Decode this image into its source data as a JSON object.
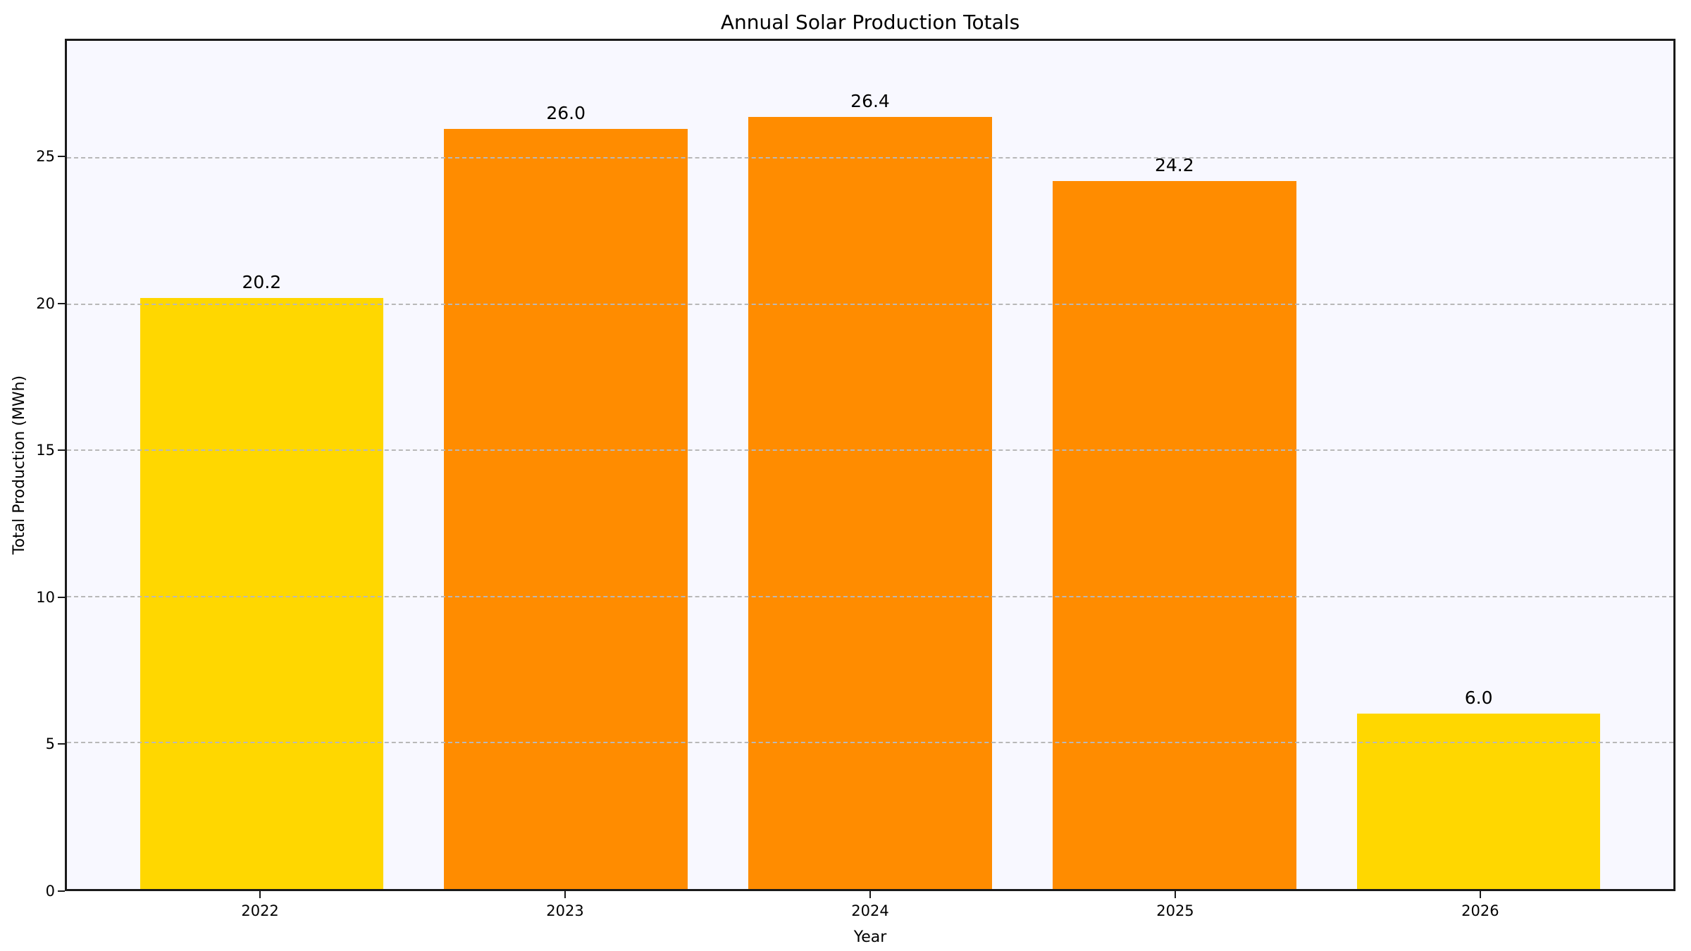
{
  "chart_data": {
    "type": "bar",
    "title": "Annual Solar Production Totals",
    "xlabel": "Year",
    "ylabel": "Total Production (MWh)",
    "categories": [
      "2022",
      "2023",
      "2024",
      "2025",
      "2026"
    ],
    "values": [
      20.2,
      26.0,
      26.4,
      24.2,
      6.0
    ],
    "bar_labels": [
      "20.2",
      "26.0",
      "26.4",
      "24.2",
      "6.0"
    ],
    "bar_colors": [
      "#FFD700",
      "#FF8C00",
      "#FF8C00",
      "#FF8C00",
      "#FFD700"
    ],
    "ylim": [
      0,
      29
    ],
    "yticks": [
      0,
      5,
      10,
      15,
      20,
      25
    ],
    "grid": {
      "axis": "y",
      "style": "dashed",
      "color": "#b8b8b8",
      "drawn_over_bars": true
    },
    "legend": "none",
    "colors": {
      "plot_background": "#F8F8FF",
      "figure_background": "#FFFFFF",
      "spine": "#1a1a1a",
      "text": "#000000"
    }
  }
}
